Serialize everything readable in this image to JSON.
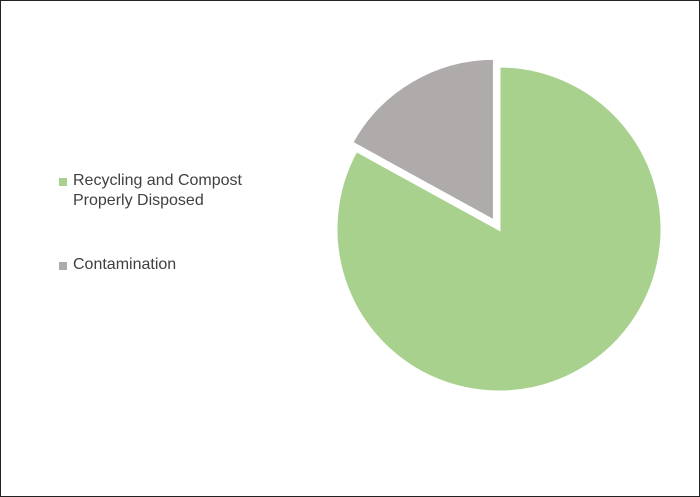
{
  "chart_data": {
    "type": "pie",
    "title": "",
    "slices": [
      {
        "label": "Recycling and Compost Properly Disposed",
        "value": 83,
        "color": "#a9d18e"
      },
      {
        "label": "Contamination",
        "value": 17,
        "color": "#afabab"
      }
    ],
    "legend_position": "left",
    "exploded_slice": "Contamination"
  },
  "colors": {
    "legend_text": "#404040",
    "slice_border": "#ffffff",
    "frame_border": "#222222"
  }
}
